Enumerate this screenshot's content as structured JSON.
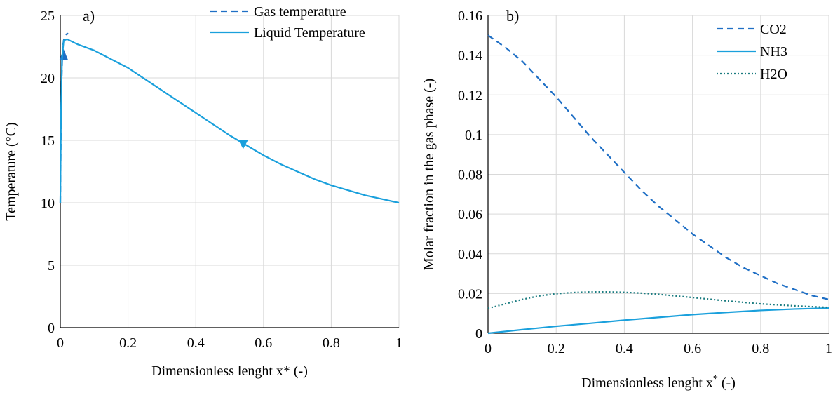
{
  "chart_data": [
    {
      "panel_label": "a)",
      "type": "line",
      "xlabel": "Dimensionless lenght x* (-)",
      "ylabel": "Temperature (°C)",
      "xlim": [
        0,
        1
      ],
      "ylim": [
        0,
        25
      ],
      "xticks": [
        "0",
        "0.2",
        "0.4",
        "0.6",
        "0.8",
        "1"
      ],
      "yticks": [
        "0",
        "5",
        "10",
        "15",
        "20",
        "25"
      ],
      "grid": true,
      "legend_position": "top-right",
      "series": [
        {
          "name": "Gas temperature",
          "style": "dashed",
          "color": "#1f6fc5",
          "x": [
            0.0,
            0.002,
            0.004,
            0.006,
            0.008,
            0.01,
            0.012,
            0.015,
            0.018,
            0.02,
            0.022
          ],
          "y": [
            10.0,
            16.0,
            20.0,
            21.8,
            22.6,
            23.0,
            23.2,
            23.4,
            23.5,
            23.5,
            23.6
          ],
          "arrow": {
            "x": 0.01,
            "y": 21.8,
            "direction": "up"
          }
        },
        {
          "name": "Liquid Temperature",
          "style": "solid",
          "color": "#1aa0dc",
          "x": [
            0.0,
            0.002,
            0.005,
            0.01,
            0.02,
            0.05,
            0.1,
            0.15,
            0.2,
            0.25,
            0.3,
            0.35,
            0.4,
            0.45,
            0.5,
            0.55,
            0.6,
            0.65,
            0.7,
            0.75,
            0.8,
            0.85,
            0.9,
            0.95,
            1.0
          ],
          "y": [
            10.0,
            17.0,
            21.5,
            23.0,
            23.1,
            22.7,
            22.2,
            21.5,
            20.8,
            19.9,
            19.0,
            18.1,
            17.2,
            16.3,
            15.4,
            14.6,
            13.8,
            13.1,
            12.5,
            11.9,
            11.4,
            11.0,
            10.6,
            10.3,
            10.0
          ],
          "arrow": {
            "x": 0.54,
            "y": 14.7,
            "direction": "down"
          }
        }
      ]
    },
    {
      "panel_label": "b)",
      "type": "line",
      "xlabel": "Dimensionless lenght x",
      "xlabel_sup": "*",
      "xlabel_tail": " (-)",
      "ylabel": "Molar fraction in the gas phase (-)",
      "xlim": [
        0,
        1
      ],
      "ylim": [
        0,
        0.16
      ],
      "xticks": [
        "0",
        "0.2",
        "0.4",
        "0.6",
        "0.8",
        "1"
      ],
      "yticks": [
        "0",
        "0.02",
        "0.04",
        "0.06",
        "0.08",
        "0.1",
        "0.12",
        "0.14",
        "0.16"
      ],
      "grid": true,
      "legend_position": "top-right",
      "series": [
        {
          "name": "CO2",
          "style": "dashed",
          "color": "#1f6fc5",
          "x": [
            0.0,
            0.05,
            0.1,
            0.15,
            0.2,
            0.25,
            0.3,
            0.35,
            0.4,
            0.45,
            0.5,
            0.55,
            0.6,
            0.65,
            0.7,
            0.75,
            0.8,
            0.85,
            0.9,
            0.95,
            1.0
          ],
          "y": [
            0.15,
            0.144,
            0.137,
            0.128,
            0.119,
            0.109,
            0.099,
            0.09,
            0.081,
            0.072,
            0.064,
            0.057,
            0.05,
            0.044,
            0.038,
            0.033,
            0.029,
            0.025,
            0.022,
            0.019,
            0.017
          ]
        },
        {
          "name": "NH3",
          "style": "solid",
          "color": "#1aa0dc",
          "x": [
            0.0,
            0.1,
            0.2,
            0.3,
            0.4,
            0.5,
            0.6,
            0.7,
            0.8,
            0.9,
            1.0
          ],
          "y": [
            0.0,
            0.0018,
            0.0035,
            0.005,
            0.0066,
            0.008,
            0.0094,
            0.0105,
            0.0115,
            0.0122,
            0.0127
          ]
        },
        {
          "name": "H2O",
          "style": "dotted",
          "color": "#1b7c80",
          "x": [
            0.0,
            0.05,
            0.1,
            0.15,
            0.2,
            0.25,
            0.3,
            0.35,
            0.4,
            0.45,
            0.5,
            0.6,
            0.7,
            0.8,
            0.9,
            1.0
          ],
          "y": [
            0.0125,
            0.0148,
            0.017,
            0.0188,
            0.0199,
            0.0205,
            0.0208,
            0.0208,
            0.0206,
            0.0202,
            0.0196,
            0.018,
            0.0163,
            0.0148,
            0.0138,
            0.013
          ]
        }
      ]
    }
  ]
}
